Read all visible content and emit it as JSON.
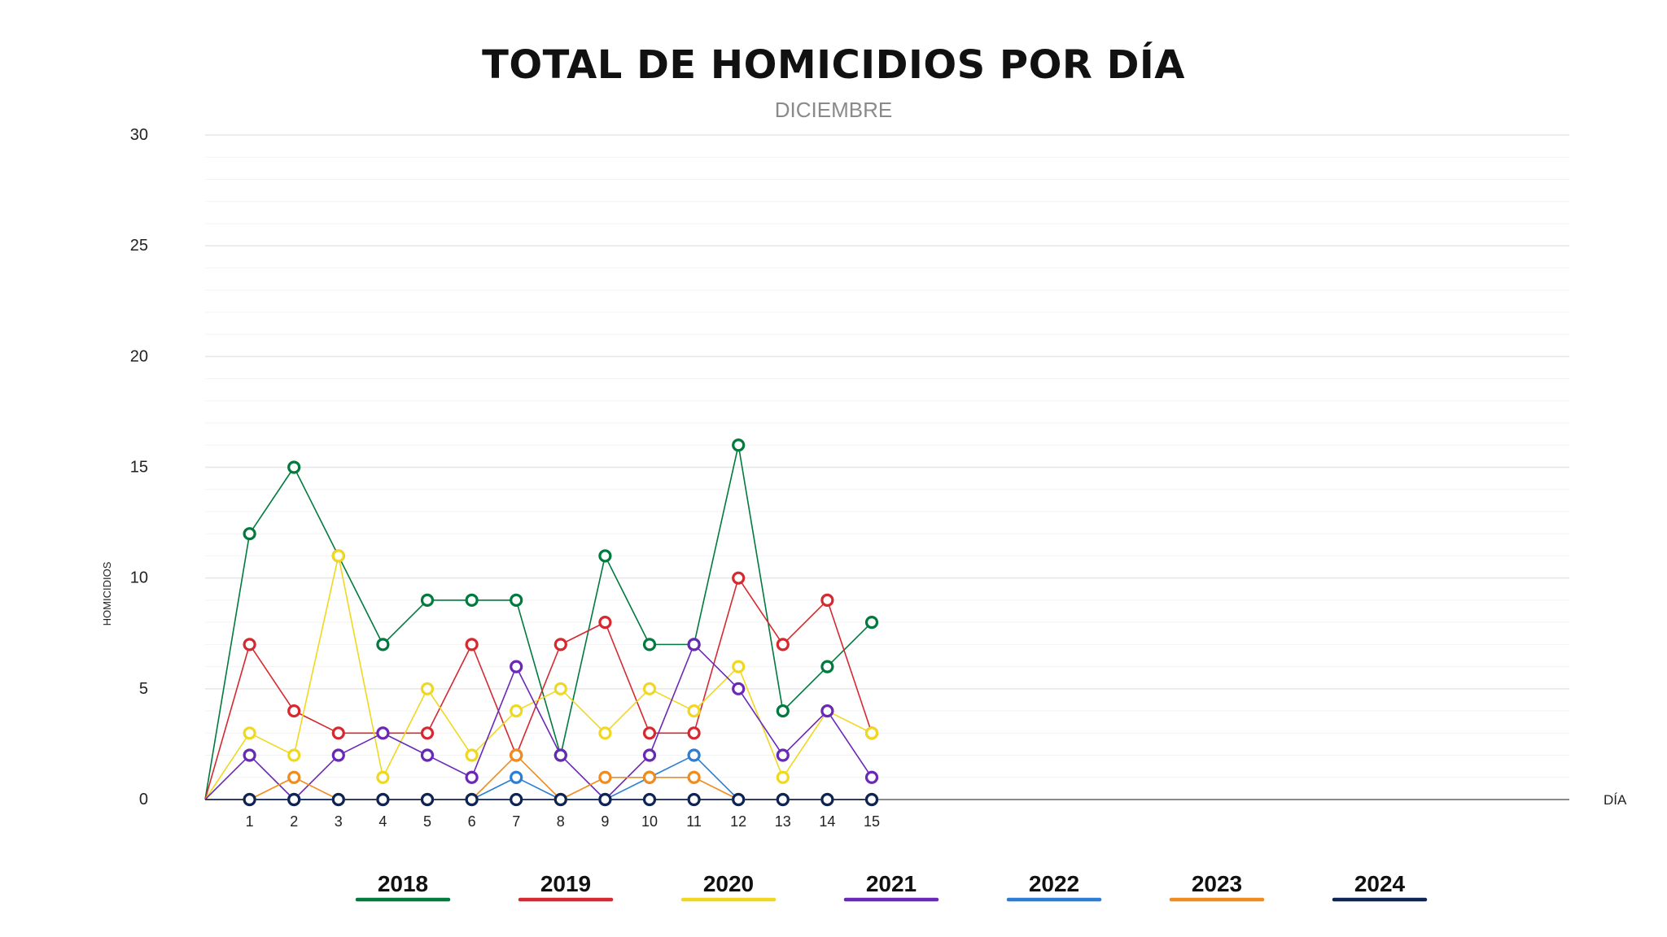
{
  "chart_data": {
    "type": "line",
    "title": "TOTAL DE HOMICIDIOS POR DÍA",
    "subtitle": "DICIEMBRE",
    "xlabel": "DÍA",
    "ylabel": "HOMICIDIOS",
    "ylim": [
      0,
      30
    ],
    "xlim": [
      0,
      31
    ],
    "yticks": [
      0,
      5,
      10,
      15,
      20,
      25,
      30
    ],
    "minor_grid_step": 1,
    "grid": true,
    "legend_position": "bottom",
    "x": [
      1,
      2,
      3,
      4,
      5,
      6,
      7,
      8,
      9,
      10,
      11,
      12,
      13,
      14,
      15
    ],
    "series": [
      {
        "name": "2018",
        "color": "#007a3d",
        "values": [
          12,
          15,
          11,
          7,
          9,
          9,
          9,
          2,
          11,
          7,
          7,
          16,
          4,
          6,
          8
        ]
      },
      {
        "name": "2019",
        "color": "#d7282f",
        "values": [
          7,
          4,
          3,
          3,
          3,
          7,
          2,
          7,
          8,
          3,
          3,
          10,
          7,
          9,
          3
        ]
      },
      {
        "name": "2020",
        "color": "#f0d820",
        "values": [
          3,
          2,
          11,
          1,
          5,
          2,
          4,
          5,
          3,
          5,
          4,
          6,
          1,
          4,
          3
        ]
      },
      {
        "name": "2021",
        "color": "#6a28b8",
        "values": [
          2,
          0,
          2,
          3,
          2,
          1,
          6,
          2,
          0,
          2,
          7,
          5,
          2,
          4,
          1
        ]
      },
      {
        "name": "2022",
        "color": "#2a7fd4",
        "values": [
          0,
          0,
          0,
          0,
          0,
          0,
          1,
          0,
          0,
          1,
          2,
          0,
          0,
          0,
          0
        ]
      },
      {
        "name": "2023",
        "color": "#f08c1e",
        "values": [
          0,
          1,
          0,
          0,
          0,
          0,
          2,
          0,
          1,
          1,
          1,
          0,
          0,
          0,
          0
        ]
      },
      {
        "name": "2024",
        "color": "#0e2455",
        "values": [
          0,
          0,
          0,
          0,
          0,
          0,
          0,
          0,
          0,
          0,
          0,
          0,
          0,
          0,
          0
        ]
      }
    ]
  },
  "colors": {
    "grid_major": "#e6e6e6",
    "grid_minor": "#f3f3f3",
    "axis": "#8a8a8a",
    "tick_text": "#222222",
    "title": "#111111",
    "subtitle": "#8a8a8a"
  }
}
